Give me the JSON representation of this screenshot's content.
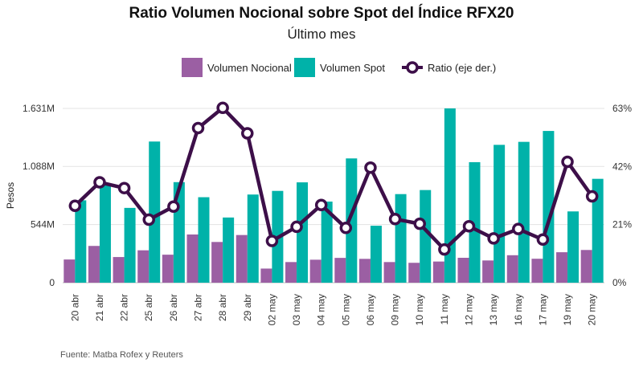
{
  "title": "Ratio Volumen Nocional sobre Spot del Índice RFX20",
  "subtitle": "Último mes",
  "source": "Fuente: Matba Rofex y Reuters",
  "chart_data": {
    "type": "bar",
    "categories": [
      "20 abr",
      "21 abr",
      "22 abr",
      "25 abr",
      "26 abr",
      "27 abr",
      "28 abr",
      "29 abr",
      "02 may",
      "03 may",
      "04 may",
      "05 may",
      "06 may",
      "09 may",
      "10 may",
      "11 may",
      "12 may",
      "13 may",
      "16 may",
      "17 may",
      "19 may",
      "20 may"
    ],
    "series": [
      {
        "name": "Volumen Nocional",
        "type": "bar",
        "axis": "left",
        "color": "#9b5fa3",
        "values": [
          217,
          344,
          240,
          303,
          262,
          451,
          381,
          446,
          132,
          193,
          215,
          232,
          223,
          193,
          186,
          198,
          233,
          208,
          257,
          224,
          285,
          306
        ]
      },
      {
        "name": "Volumen Spot",
        "type": "bar",
        "axis": "left",
        "color": "#00b2a9",
        "values": [
          771,
          924,
          700,
          1321,
          941,
          800,
          610,
          825,
          859,
          939,
          759,
          1163,
          533,
          829,
          867,
          1631,
          1128,
          1290,
          1318,
          1420,
          667,
          972
        ]
      },
      {
        "name": "Ratio (eje der.)",
        "type": "line",
        "axis": "right",
        "color": "#3d0f49",
        "values": [
          27.8,
          36.3,
          34.2,
          22.8,
          27.5,
          55.9,
          63.2,
          54.0,
          15.1,
          20.2,
          28.1,
          19.8,
          41.6,
          23.0,
          21.3,
          12.0,
          20.4,
          16.0,
          19.4,
          15.6,
          43.7,
          31.2
        ]
      }
    ],
    "yaxis_left": {
      "label": "Pesos",
      "range": [
        0,
        1631
      ],
      "ticks": [
        0,
        544,
        1088,
        1631
      ],
      "tick_labels": [
        "0",
        "544M",
        "1.088M",
        "1.631M"
      ]
    },
    "yaxis_right": {
      "range": [
        0,
        63
      ],
      "ticks": [
        0,
        21,
        42,
        63
      ],
      "tick_labels": [
        "0%",
        "21%",
        "42%",
        "63%"
      ]
    },
    "grid": true,
    "legend": "top-center"
  }
}
